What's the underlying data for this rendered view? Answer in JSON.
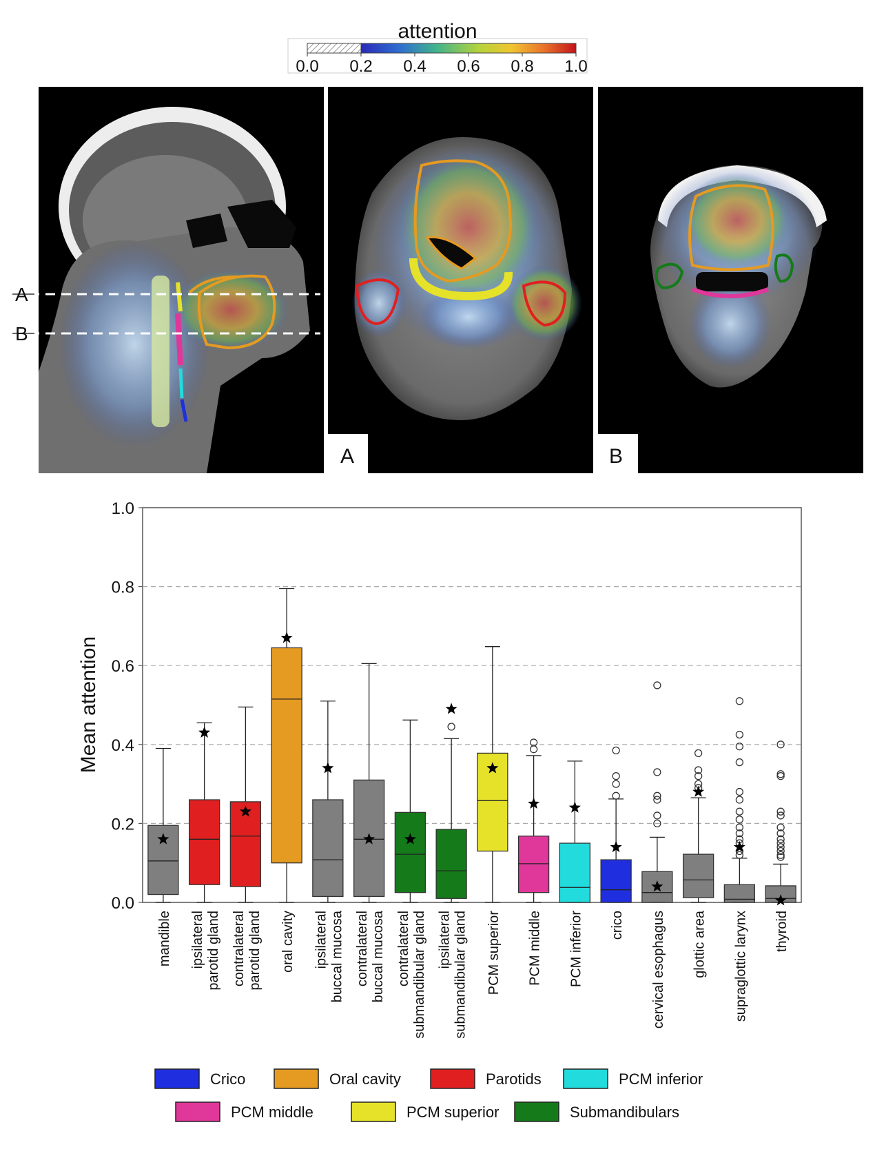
{
  "colorbar": {
    "title": "attention",
    "ticks": [
      "0.0",
      "0.2",
      "0.4",
      "0.6",
      "0.8",
      "1.0"
    ]
  },
  "ct_panels": {
    "slice_labels": [
      "A",
      "B"
    ],
    "panel_labels": [
      "A",
      "B"
    ]
  },
  "colors": {
    "gray": "#7f7f7f",
    "crico": "#1f2fe0",
    "oral_cavity": "#e59a22",
    "parotids": "#e02020",
    "pcm_inferior": "#22dbdd",
    "pcm_middle": "#e0379a",
    "pcm_superior": "#e6e22a",
    "submandibulars": "#157a1a"
  },
  "chart_data": {
    "type": "box",
    "title": "",
    "xlabel": "",
    "ylabel": "Mean attention",
    "ylim": [
      0.0,
      1.0
    ],
    "yticks": [
      "0.0",
      "0.2",
      "0.4",
      "0.6",
      "0.8",
      "1.0"
    ],
    "grid": "horizontal dashed",
    "legend_position": "bottom",
    "categories": [
      {
        "label": [
          "mandible"
        ],
        "color": "gray",
        "q1": 0.02,
        "median": 0.105,
        "q3": 0.195,
        "whisker_low": 0.0,
        "whisker_high": 0.39,
        "star": 0.16,
        "outliers": []
      },
      {
        "label": [
          "ipsilateral",
          "parotid gland"
        ],
        "color": "parotids",
        "q1": 0.045,
        "median": 0.16,
        "q3": 0.26,
        "whisker_low": 0.0,
        "whisker_high": 0.455,
        "star": 0.43,
        "outliers": []
      },
      {
        "label": [
          "contralateral",
          "parotid gland"
        ],
        "color": "parotids",
        "q1": 0.04,
        "median": 0.168,
        "q3": 0.255,
        "whisker_low": 0.0,
        "whisker_high": 0.495,
        "star": 0.23,
        "outliers": []
      },
      {
        "label": [
          "oral cavity"
        ],
        "color": "oral_cavity",
        "q1": 0.1,
        "median": 0.515,
        "q3": 0.645,
        "whisker_low": 0.0,
        "whisker_high": 0.795,
        "star": 0.67,
        "outliers": []
      },
      {
        "label": [
          "ipsilateral",
          "buccal mucosa"
        ],
        "color": "gray",
        "q1": 0.015,
        "median": 0.108,
        "q3": 0.26,
        "whisker_low": 0.0,
        "whisker_high": 0.51,
        "star": 0.34,
        "outliers": []
      },
      {
        "label": [
          "contralateral",
          "buccal mucosa"
        ],
        "color": "gray",
        "q1": 0.015,
        "median": 0.16,
        "q3": 0.31,
        "whisker_low": 0.0,
        "whisker_high": 0.605,
        "star": 0.16,
        "outliers": []
      },
      {
        "label": [
          "contralateral",
          "submandibular gland"
        ],
        "color": "submandibulars",
        "q1": 0.025,
        "median": 0.122,
        "q3": 0.228,
        "whisker_low": 0.0,
        "whisker_high": 0.462,
        "star": 0.16,
        "outliers": []
      },
      {
        "label": [
          "ipsilateral",
          "submandibular gland"
        ],
        "color": "submandibulars",
        "q1": 0.01,
        "median": 0.08,
        "q3": 0.185,
        "whisker_low": 0.0,
        "whisker_high": 0.415,
        "star": 0.49,
        "outliers": [
          0.445
        ]
      },
      {
        "label": [
          "PCM superior"
        ],
        "color": "pcm_superior",
        "q1": 0.13,
        "median": 0.258,
        "q3": 0.378,
        "whisker_low": 0.0,
        "whisker_high": 0.648,
        "star": 0.34,
        "outliers": []
      },
      {
        "label": [
          "PCM middle"
        ],
        "color": "pcm_middle",
        "q1": 0.025,
        "median": 0.098,
        "q3": 0.168,
        "whisker_low": 0.0,
        "whisker_high": 0.372,
        "star": 0.25,
        "outliers": [
          0.388,
          0.405
        ]
      },
      {
        "label": [
          "PCM inferior"
        ],
        "color": "pcm_inferior",
        "q1": 0.0,
        "median": 0.038,
        "q3": 0.15,
        "whisker_low": 0.0,
        "whisker_high": 0.358,
        "star": 0.24,
        "outliers": []
      },
      {
        "label": [
          "crico"
        ],
        "color": "crico",
        "q1": 0.0,
        "median": 0.032,
        "q3": 0.108,
        "whisker_low": 0.0,
        "whisker_high": 0.262,
        "star": 0.14,
        "outliers": [
          0.27,
          0.3,
          0.32,
          0.385
        ]
      },
      {
        "label": [
          "cervical esophagus"
        ],
        "color": "gray",
        "q1": 0.0,
        "median": 0.025,
        "q3": 0.078,
        "whisker_low": 0.0,
        "whisker_high": 0.165,
        "star": 0.04,
        "outliers": [
          0.2,
          0.22,
          0.26,
          0.27,
          0.33,
          0.55
        ]
      },
      {
        "label": [
          "glottic area"
        ],
        "color": "gray",
        "q1": 0.012,
        "median": 0.057,
        "q3": 0.122,
        "whisker_low": 0.0,
        "whisker_high": 0.265,
        "star": 0.28,
        "outliers": [
          0.29,
          0.3,
          0.32,
          0.335,
          0.378
        ]
      },
      {
        "label": [
          "supraglottic larynx"
        ],
        "color": "gray",
        "q1": 0.0,
        "median": 0.008,
        "q3": 0.045,
        "whisker_low": 0.0,
        "whisker_high": 0.112,
        "star": 0.14,
        "outliers": [
          0.12,
          0.13,
          0.15,
          0.16,
          0.175,
          0.19,
          0.21,
          0.23,
          0.26,
          0.28,
          0.355,
          0.395,
          0.425,
          0.51
        ]
      },
      {
        "label": [
          "thyroid"
        ],
        "color": "gray",
        "q1": 0.0,
        "median": 0.01,
        "q3": 0.042,
        "whisker_low": 0.0,
        "whisker_high": 0.097,
        "star": 0.005,
        "outliers": [
          0.115,
          0.12,
          0.13,
          0.14,
          0.15,
          0.16,
          0.175,
          0.19,
          0.22,
          0.23,
          0.32,
          0.325,
          0.4
        ]
      }
    ],
    "legend": [
      {
        "label": "Crico",
        "color": "crico"
      },
      {
        "label": "Oral cavity",
        "color": "oral_cavity"
      },
      {
        "label": "Parotids",
        "color": "parotids"
      },
      {
        "label": "PCM inferior",
        "color": "pcm_inferior"
      },
      {
        "label": "PCM middle",
        "color": "pcm_middle"
      },
      {
        "label": "PCM superior",
        "color": "pcm_superior"
      },
      {
        "label": "Submandibulars",
        "color": "submandibulars"
      }
    ]
  }
}
